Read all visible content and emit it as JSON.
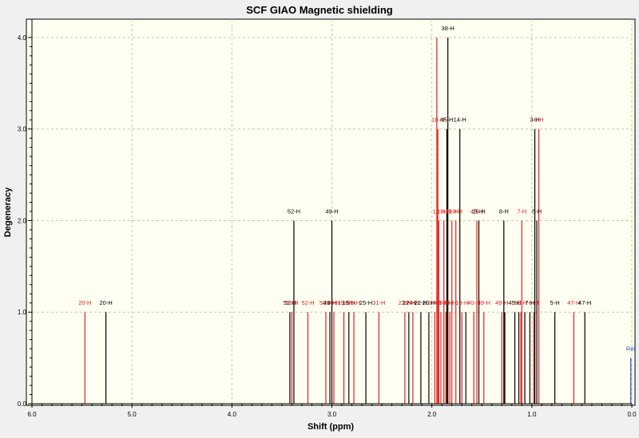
{
  "chart_data": {
    "type": "stick-spectrum",
    "title": "SCF GIAO Magnetic shielding",
    "xlabel": "Shift (ppm)",
    "ylabel": "Degeneracy",
    "xlim": [
      6.0,
      0.0
    ],
    "ylim": [
      0,
      4.2
    ],
    "x_ticks": [
      "6.0",
      "5.0",
      "4.0",
      "3.0",
      "2.0",
      "1.0",
      "0.0"
    ],
    "y_ticks": [
      "0.0",
      "1.0",
      "2.0",
      "3.0",
      "4.0"
    ],
    "grid": true,
    "colors": {
      "black": "#000000",
      "red": "#e02020",
      "ref": "#2040d0",
      "plot_bg": "#fffff2",
      "grid": "#c8c8a0"
    },
    "peaks": [
      {
        "x": 5.47,
        "y": 1,
        "label": "20-H",
        "color": "red"
      },
      {
        "x": 5.26,
        "y": 1,
        "label": "20-H",
        "color": "black"
      },
      {
        "x": 3.42,
        "y": 1,
        "label": "52-H",
        "color": "black"
      },
      {
        "x": 3.4,
        "y": 1,
        "label": "53-H",
        "color": "red"
      },
      {
        "x": 3.38,
        "y": 2,
        "label": "52-H",
        "color": "black"
      },
      {
        "x": 3.24,
        "y": 1,
        "label": "52-H",
        "color": "red"
      },
      {
        "x": 3.06,
        "y": 1,
        "label": "50-H",
        "color": "red"
      },
      {
        "x": 3.02,
        "y": 1,
        "label": "49-H",
        "color": "black"
      },
      {
        "x": 3.0,
        "y": 2,
        "label": "49-H",
        "color": "black"
      },
      {
        "x": 2.98,
        "y": 1,
        "label": "49-H",
        "color": "red"
      },
      {
        "x": 2.88,
        "y": 1,
        "label": "19-H",
        "color": "red"
      },
      {
        "x": 2.83,
        "y": 1,
        "label": "15-H",
        "color": "black"
      },
      {
        "x": 2.78,
        "y": 1,
        "label": "25-H",
        "color": "red"
      },
      {
        "x": 2.66,
        "y": 1,
        "label": "25-H",
        "color": "black"
      },
      {
        "x": 2.53,
        "y": 1,
        "label": "31-H",
        "color": "red"
      },
      {
        "x": 2.27,
        "y": 1,
        "label": "23-H",
        "color": "red"
      },
      {
        "x": 2.23,
        "y": 1,
        "label": "22-H",
        "color": "black"
      },
      {
        "x": 2.19,
        "y": 1,
        "label": "24-H",
        "color": "red"
      },
      {
        "x": 2.11,
        "y": 1,
        "label": "22-H",
        "color": "black"
      },
      {
        "x": 2.03,
        "y": 1,
        "label": "20-H",
        "color": "black"
      },
      {
        "x": 1.97,
        "y": 1,
        "label": "37-H",
        "color": "red"
      },
      {
        "x": 1.95,
        "y": 4,
        "label": "",
        "color": "red"
      },
      {
        "x": 1.94,
        "y": 3,
        "label": "18-H",
        "color": "red"
      },
      {
        "x": 1.93,
        "y": 2,
        "label": "11-H",
        "color": "red"
      },
      {
        "x": 1.91,
        "y": 1,
        "label": "45-H",
        "color": "red"
      },
      {
        "x": 1.88,
        "y": 2,
        "label": "13-H",
        "color": "red"
      },
      {
        "x": 1.86,
        "y": 1,
        "label": "34-H",
        "color": "red"
      },
      {
        "x": 1.85,
        "y": 3,
        "label": "45-H",
        "color": "black"
      },
      {
        "x": 1.84,
        "y": 4,
        "label": "38-H",
        "color": "black"
      },
      {
        "x": 1.82,
        "y": 1,
        "label": "36-H",
        "color": "red"
      },
      {
        "x": 1.8,
        "y": 2,
        "label": "41-H",
        "color": "red"
      },
      {
        "x": 1.76,
        "y": 2,
        "label": "10-H",
        "color": "red"
      },
      {
        "x": 1.72,
        "y": 3,
        "label": "14-H",
        "color": "black"
      },
      {
        "x": 1.7,
        "y": 1,
        "label": "19-H",
        "color": "red"
      },
      {
        "x": 1.66,
        "y": 1,
        "label": "",
        "color": "black"
      },
      {
        "x": 1.58,
        "y": 1,
        "label": "40-H",
        "color": "red"
      },
      {
        "x": 1.55,
        "y": 2,
        "label": "42-H",
        "color": "red"
      },
      {
        "x": 1.53,
        "y": 2,
        "label": "26-H",
        "color": "black"
      },
      {
        "x": 1.48,
        "y": 1,
        "label": "39-H",
        "color": "red"
      },
      {
        "x": 1.3,
        "y": 1,
        "label": "49-H",
        "color": "red"
      },
      {
        "x": 1.28,
        "y": 2,
        "label": "8-H",
        "color": "black"
      },
      {
        "x": 1.27,
        "y": 1,
        "label": "",
        "color": "black"
      },
      {
        "x": 1.17,
        "y": 1,
        "label": "45-H",
        "color": "black"
      },
      {
        "x": 1.13,
        "y": 1,
        "label": "",
        "color": "black"
      },
      {
        "x": 1.11,
        "y": 1,
        "label": "50-H",
        "color": "red"
      },
      {
        "x": 1.1,
        "y": 2,
        "label": "7-H",
        "color": "red"
      },
      {
        "x": 1.07,
        "y": 1,
        "label": "",
        "color": "black"
      },
      {
        "x": 1.02,
        "y": 1,
        "label": "7-H",
        "color": "black"
      },
      {
        "x": 0.98,
        "y": 1,
        "label": "6-H",
        "color": "red"
      },
      {
        "x": 0.97,
        "y": 3,
        "label": "3-H",
        "color": "black"
      },
      {
        "x": 0.95,
        "y": 2,
        "label": "5-H",
        "color": "black"
      },
      {
        "x": 0.93,
        "y": 3,
        "label": "6-H",
        "color": "red"
      },
      {
        "x": 0.77,
        "y": 1,
        "label": "5-H",
        "color": "black"
      },
      {
        "x": 0.58,
        "y": 1,
        "label": "47-H",
        "color": "red"
      },
      {
        "x": 0.47,
        "y": 1,
        "label": "47-H",
        "color": "black"
      },
      {
        "x": 0.01,
        "y": 0.5,
        "label": "Ref",
        "color": "ref"
      }
    ]
  }
}
